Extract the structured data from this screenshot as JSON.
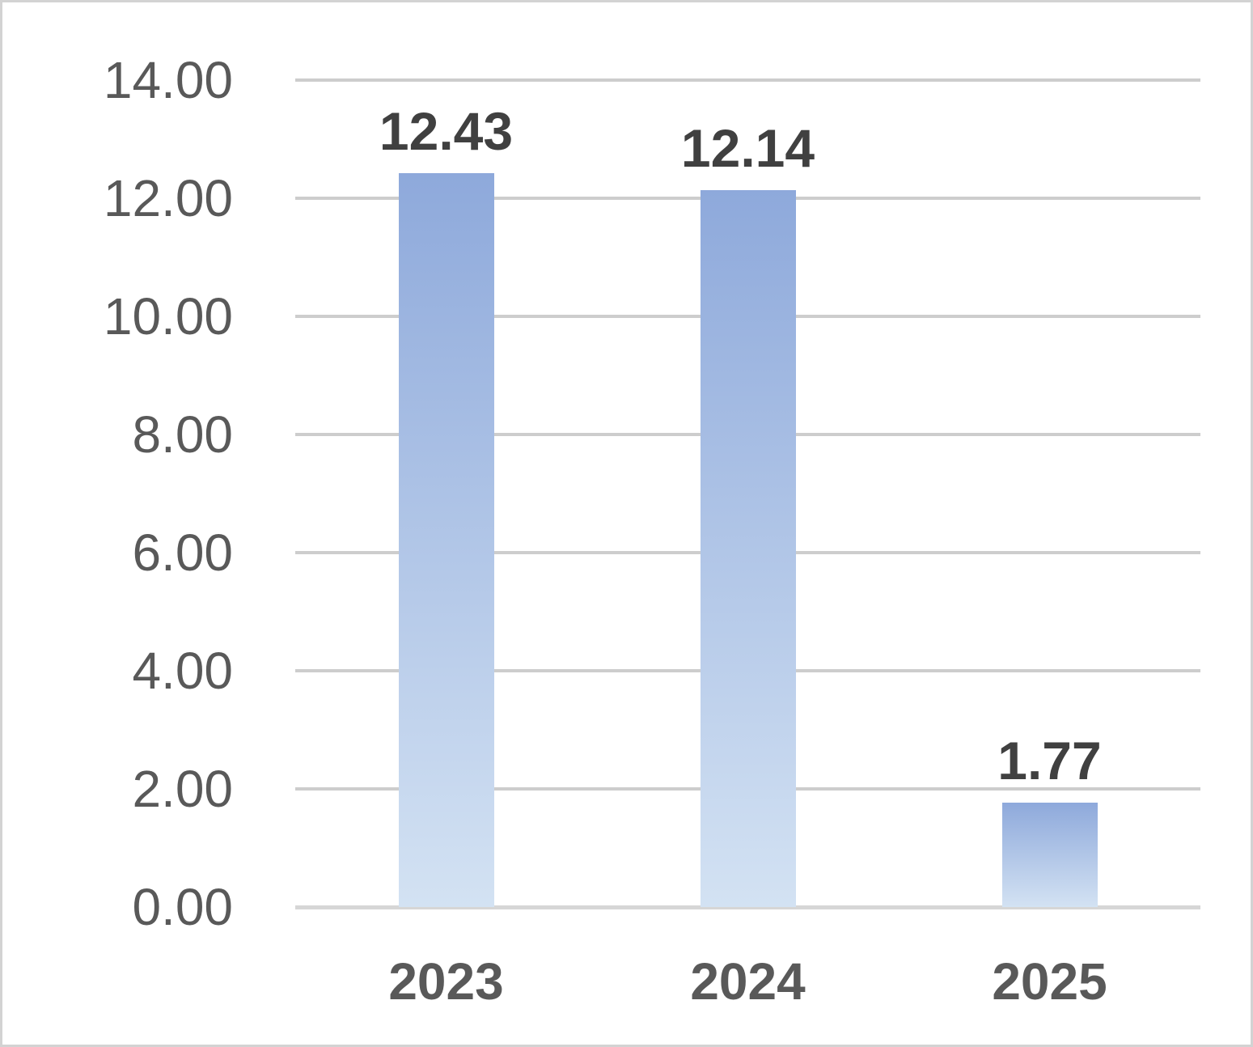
{
  "chart_data": {
    "type": "bar",
    "title": "",
    "xlabel": "",
    "ylabel": "",
    "categories": [
      "2023",
      "2024",
      "2025"
    ],
    "values": [
      12.43,
      12.14,
      1.77
    ],
    "value_labels": [
      "12.43",
      "12.14",
      "1.77"
    ],
    "ylim": [
      0,
      14
    ],
    "ytick_step": 2,
    "yticks": [
      {
        "value": 0,
        "label": "0.00"
      },
      {
        "value": 2,
        "label": "2.00"
      },
      {
        "value": 4,
        "label": "4.00"
      },
      {
        "value": 6,
        "label": "6.00"
      },
      {
        "value": 8,
        "label": "8.00"
      },
      {
        "value": 10,
        "label": "10.00"
      },
      {
        "value": 12,
        "label": "12.00"
      },
      {
        "value": 14,
        "label": "14.00"
      }
    ],
    "grid": "horizontal-only",
    "legend": "none",
    "colors": {
      "bar_gradient_top": "#8EA9DB",
      "bar_gradient_bottom": "#D3E2F3",
      "gridline": "#CDCDCD",
      "axis_line": "#D6D6D6",
      "value_label": "#404040",
      "tick_label": "#595959",
      "background": "#FFFFFF",
      "frame_border": "#D3D3D3"
    }
  }
}
